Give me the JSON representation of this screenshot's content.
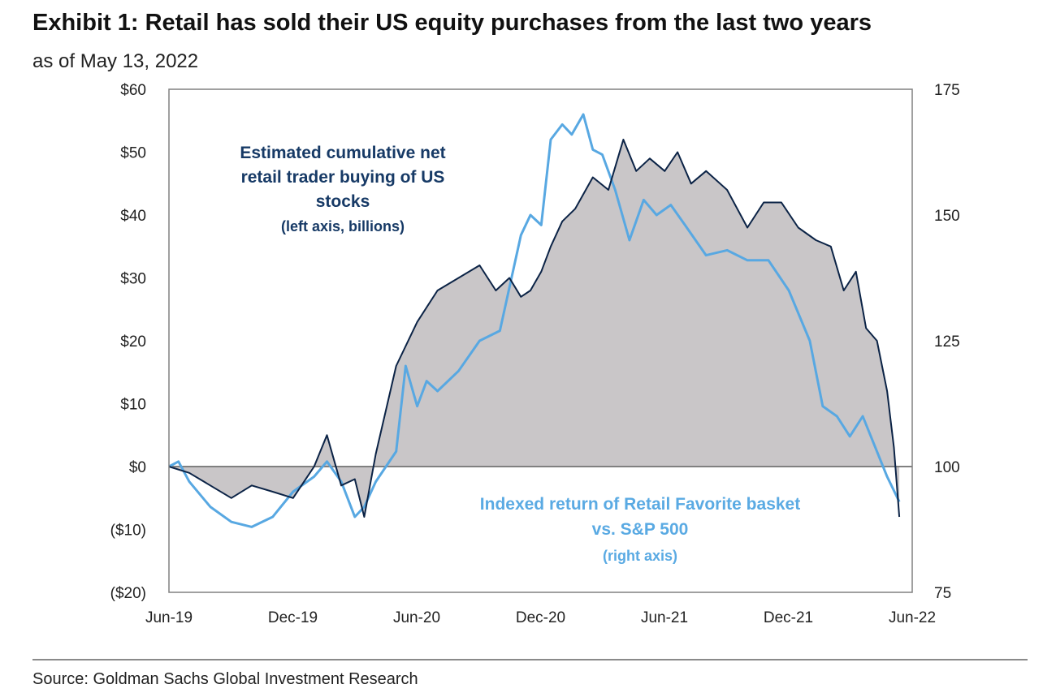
{
  "header": {
    "title": "Exhibit 1: Retail has sold their US equity purchases from the last two years",
    "subtitle": "as of May 13, 2022"
  },
  "footer": {
    "source": "Source: Goldman Sachs Global Investment Research"
  },
  "colors": {
    "cumulative_line": "#0b2346",
    "cumulative_fill": "#c9c6c8",
    "basket_line": "#58a8e2",
    "annotation_dark": "#173a66",
    "annotation_light": "#5aaae3",
    "plot_border": "#808080",
    "zero_line": "#808080"
  },
  "chart_data": {
    "type": "area",
    "title": "Exhibit 1: Retail has sold their US equity purchases from the last two years",
    "subtitle": "as of May 13, 2022",
    "x_ticks": [
      "Jun-19",
      "Dec-19",
      "Jun-20",
      "Dec-20",
      "Jun-21",
      "Dec-21",
      "Jun-22"
    ],
    "left_axis": {
      "ylim": [
        -20,
        60
      ],
      "ticks": [
        60,
        50,
        40,
        30,
        20,
        10,
        0,
        -10,
        -20
      ],
      "tick_labels": [
        "$60",
        "$50",
        "$40",
        "$30",
        "$20",
        "$10",
        "$0",
        "($10)",
        "($20)"
      ]
    },
    "right_axis": {
      "ylim": [
        75,
        175
      ],
      "ticks": [
        175,
        150,
        125,
        100,
        75
      ],
      "tick_labels": [
        "175",
        "150",
        "125",
        "100",
        "75"
      ]
    },
    "annotations": {
      "cumulative": [
        "Estimated cumulative net",
        "retail trader buying of US",
        "stocks",
        "(left axis, billions)"
      ],
      "basket": [
        "Indexed return of Retail Favorite basket",
        "vs. S&P 500",
        "(right axis)"
      ]
    },
    "series": [
      {
        "name": "Estimated cumulative net retail trader buying of US stocks",
        "axis": "left",
        "style": "filled line",
        "x": [
          "2019-06-01",
          "2019-07-01",
          "2019-08-01",
          "2019-09-01",
          "2019-10-01",
          "2019-11-01",
          "2019-12-01",
          "2020-01-01",
          "2020-01-20",
          "2020-02-10",
          "2020-03-01",
          "2020-03-15",
          "2020-04-01",
          "2020-05-01",
          "2020-06-01",
          "2020-07-01",
          "2020-08-01",
          "2020-09-01",
          "2020-09-25",
          "2020-10-15",
          "2020-11-01",
          "2020-11-15",
          "2020-12-01",
          "2020-12-15",
          "2021-01-01",
          "2021-01-20",
          "2021-02-15",
          "2021-03-10",
          "2021-04-01",
          "2021-04-20",
          "2021-05-10",
          "2021-06-01",
          "2021-06-20",
          "2021-07-10",
          "2021-08-01",
          "2021-09-01",
          "2021-10-01",
          "2021-10-25",
          "2021-11-20",
          "2021-12-15",
          "2022-01-10",
          "2022-02-01",
          "2022-02-20",
          "2022-03-10",
          "2022-03-25",
          "2022-04-10",
          "2022-04-25",
          "2022-05-05",
          "2022-05-13"
        ],
        "values": [
          0,
          -1,
          -3,
          -5,
          -3,
          -4,
          -5,
          0,
          5,
          -3,
          -2,
          -8,
          2,
          16,
          23,
          28,
          30,
          32,
          28,
          30,
          27,
          28,
          31,
          35,
          39,
          41,
          46,
          44,
          52,
          47,
          49,
          47,
          50,
          45,
          47,
          44,
          38,
          42,
          42,
          38,
          36,
          35,
          28,
          31,
          22,
          20,
          12,
          3,
          -8
        ]
      },
      {
        "name": "Indexed return of Retail Favorite basket vs. S&P 500",
        "axis": "right",
        "style": "line",
        "x": [
          "2019-06-01",
          "2019-06-15",
          "2019-07-01",
          "2019-08-01",
          "2019-09-01",
          "2019-10-01",
          "2019-11-01",
          "2019-12-01",
          "2020-01-01",
          "2020-01-20",
          "2020-02-10",
          "2020-03-01",
          "2020-03-15",
          "2020-04-01",
          "2020-05-01",
          "2020-05-15",
          "2020-06-01",
          "2020-06-15",
          "2020-07-01",
          "2020-08-01",
          "2020-09-01",
          "2020-10-01",
          "2020-11-01",
          "2020-11-15",
          "2020-12-01",
          "2020-12-15",
          "2021-01-01",
          "2021-01-15",
          "2021-02-01",
          "2021-02-15",
          "2021-03-01",
          "2021-03-20",
          "2021-04-10",
          "2021-05-01",
          "2021-05-20",
          "2021-06-10",
          "2021-07-01",
          "2021-08-01",
          "2021-09-01",
          "2021-10-01",
          "2021-11-01",
          "2021-12-01",
          "2022-01-01",
          "2022-01-20",
          "2022-02-10",
          "2022-03-01",
          "2022-03-20",
          "2022-04-10",
          "2022-04-25",
          "2022-05-13"
        ],
        "values": [
          100,
          101,
          97,
          92,
          89,
          88,
          90,
          95,
          98,
          101,
          97,
          90,
          92,
          97,
          103,
          120,
          112,
          117,
          115,
          119,
          125,
          127,
          146,
          150,
          148,
          165,
          168,
          166,
          170,
          163,
          162,
          155,
          145,
          153,
          150,
          152,
          148,
          142,
          143,
          141,
          141,
          135,
          125,
          112,
          110,
          106,
          110,
          103,
          98,
          93
        ]
      }
    ]
  }
}
